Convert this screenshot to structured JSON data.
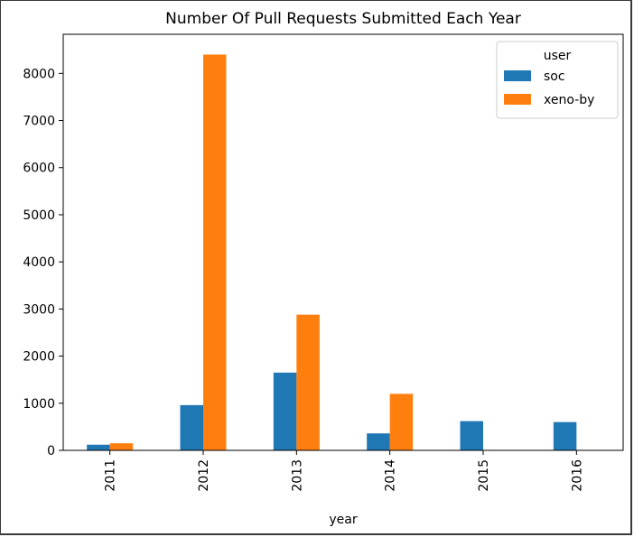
{
  "chart_data": {
    "type": "bar",
    "title": "Number Of Pull Requests Submitted Each Year",
    "xlabel": "year",
    "ylabel": "",
    "categories": [
      "2011",
      "2012",
      "2013",
      "2014",
      "2015",
      "2016"
    ],
    "series": [
      {
        "name": "soc",
        "values": [
          120,
          960,
          1650,
          360,
          620,
          600
        ],
        "color": "#1f77b4"
      },
      {
        "name": "xeno-by",
        "values": [
          150,
          8400,
          2880,
          1200,
          0,
          0
        ],
        "color": "#ff7f0e"
      }
    ],
    "ylim": [
      0,
      8830
    ],
    "yticks": [
      0,
      1000,
      2000,
      3000,
      4000,
      5000,
      6000,
      7000,
      8000
    ],
    "grid": false,
    "legend": {
      "title": "user",
      "placement": "top-right"
    }
  }
}
